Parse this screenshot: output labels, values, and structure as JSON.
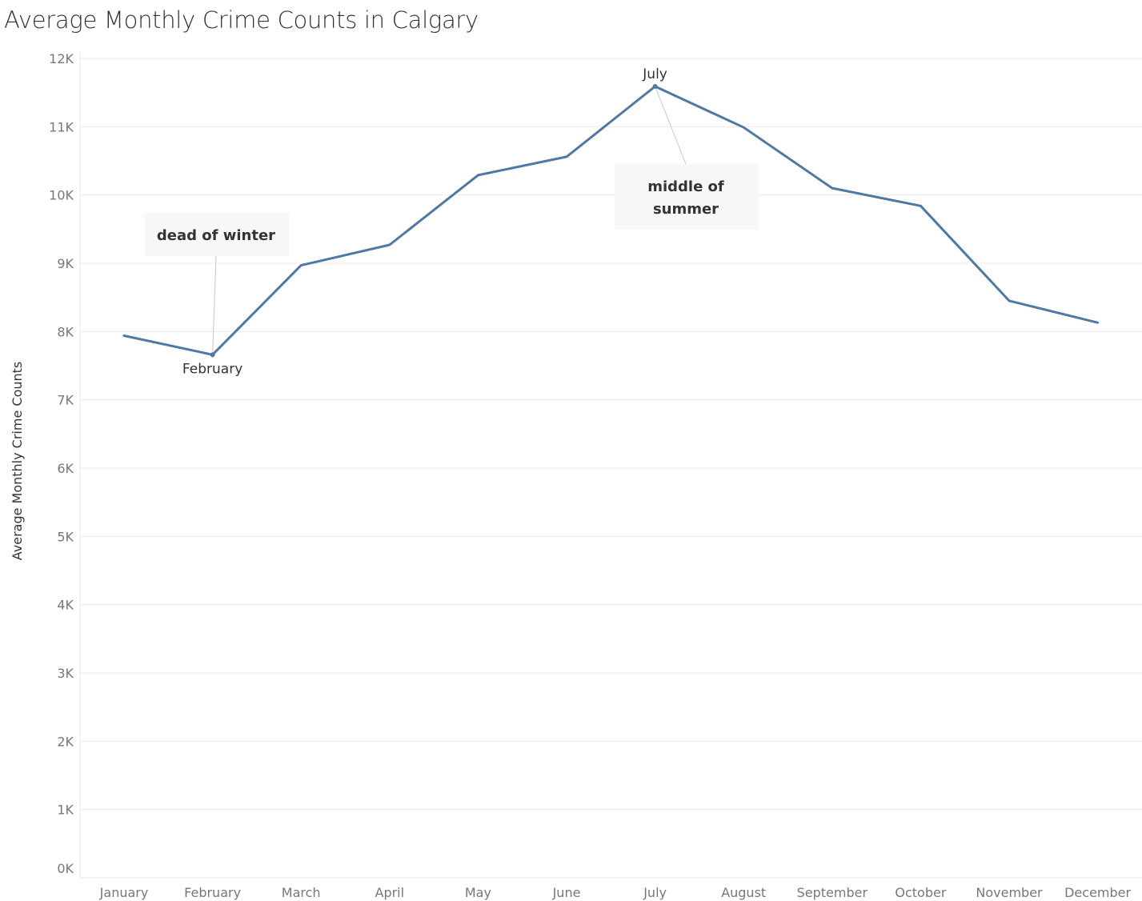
{
  "chart_data": {
    "type": "line",
    "title": "Average Monthly Crime Counts in Calgary",
    "xlabel": "",
    "ylabel": "Average Monthly Crime Counts",
    "categories": [
      "January",
      "February",
      "March",
      "April",
      "May",
      "June",
      "July",
      "August",
      "September",
      "October",
      "November",
      "December"
    ],
    "series": [
      {
        "values": [
          7940,
          7660,
          8970,
          9270,
          10290,
          10560,
          11590,
          10990,
          10100,
          9840,
          8450,
          8130
        ]
      }
    ],
    "ylim": [
      0,
      12000
    ],
    "yticks": [
      0,
      1000,
      2000,
      3000,
      4000,
      5000,
      6000,
      7000,
      8000,
      9000,
      10000,
      11000,
      12000
    ],
    "ytick_labels": [
      "0K",
      "1K",
      "2K",
      "3K",
      "4K",
      "5K",
      "6K",
      "7K",
      "8K",
      "9K",
      "10K",
      "11K",
      "12K"
    ],
    "grid": true,
    "line_color": "#4e79a7",
    "point_labels": [
      {
        "category": "February",
        "text": "February"
      },
      {
        "category": "July",
        "text": "July"
      }
    ],
    "annotations": [
      {
        "category": "February",
        "lines": [
          "dead of winter"
        ]
      },
      {
        "category": "July",
        "lines": [
          "middle of",
          "summer"
        ]
      }
    ]
  }
}
